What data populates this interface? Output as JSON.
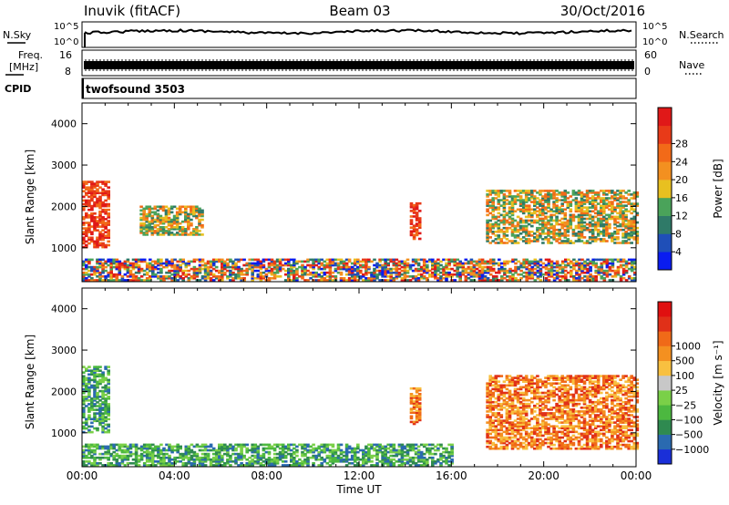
{
  "header": {
    "station": "Inuvik (fitACF)",
    "beam": "Beam 03",
    "date": "30/Oct/2016"
  },
  "top_panels": {
    "noise": {
      "left_label": "N.Sky",
      "right_label": "N.Search",
      "left_ticks": [
        "10^5",
        "10^0"
      ],
      "right_ticks": [
        "10^5",
        "10^0"
      ]
    },
    "freq": {
      "left_label_1": "Freq.",
      "left_label_2": "[MHz]",
      "right_label": "Nave",
      "left_ticks": [
        "16",
        "8"
      ],
      "right_ticks": [
        "60",
        "0"
      ]
    },
    "cpid": {
      "label": "CPID",
      "value": "twofsound 3503"
    }
  },
  "chart_data": [
    {
      "type": "heatmap",
      "name": "power",
      "ylabel": "Slant Range [km]",
      "xlabel": "",
      "x_range": [
        "00:00",
        "24:00"
      ],
      "ylim": [
        180,
        4500
      ],
      "yticks": [
        1000,
        2000,
        3000,
        4000
      ],
      "colorbar": {
        "label": "Power [dB]",
        "ticks": [
          4,
          8,
          12,
          16,
          20,
          24,
          28
        ],
        "colors": [
          "#0a1cf0",
          "#1f4fb8",
          "#2f7a68",
          "#4aa35a",
          "#e8c020",
          "#f39020",
          "#f26a18",
          "#e83a18",
          "#e01818"
        ]
      },
      "regions": [
        {
          "t": [
            0.0,
            1.2
          ],
          "r": [
            1000,
            2600
          ],
          "level": "high"
        },
        {
          "t": [
            0.0,
            24.0
          ],
          "r": [
            200,
            700
          ],
          "level": "mixed"
        },
        {
          "t": [
            2.5,
            5.2
          ],
          "r": [
            1300,
            2000
          ],
          "level": "medium"
        },
        {
          "t": [
            14.2,
            14.6
          ],
          "r": [
            1200,
            2100
          ],
          "level": "high"
        },
        {
          "t": [
            17.5,
            24.0
          ],
          "r": [
            1100,
            2400
          ],
          "level": "medium"
        }
      ]
    },
    {
      "type": "heatmap",
      "name": "velocity",
      "ylabel": "Slant Range [km]",
      "xlabel": "Time UT",
      "x_range": [
        "00:00",
        "24:00"
      ],
      "xticks": [
        "00:00",
        "04:00",
        "08:00",
        "12:00",
        "16:00",
        "20:00",
        "00:00"
      ],
      "ylim": [
        180,
        4500
      ],
      "yticks": [
        1000,
        2000,
        3000,
        4000
      ],
      "colorbar": {
        "label": "Velocity [m s⁻¹]",
        "ticks": [
          "1000",
          "500",
          "100",
          "25",
          "−25",
          "−100",
          "−500",
          "−1000"
        ],
        "colors": [
          "#1a2fd8",
          "#2a6ab0",
          "#2f8a50",
          "#4cb840",
          "#7ad048",
          "#c8c8c8",
          "#f8c040",
          "#f49020",
          "#f06a18",
          "#e03018",
          "#e01010"
        ]
      },
      "regions": [
        {
          "t": [
            0.0,
            1.2
          ],
          "r": [
            1000,
            2600
          ],
          "level": "receding"
        },
        {
          "t": [
            0.0,
            16.0
          ],
          "r": [
            200,
            700
          ],
          "level": "receding"
        },
        {
          "t": [
            14.2,
            14.6
          ],
          "r": [
            1200,
            2100
          ],
          "level": "approaching"
        },
        {
          "t": [
            17.5,
            24.0
          ],
          "r": [
            600,
            2400
          ],
          "level": "approaching"
        }
      ]
    }
  ]
}
